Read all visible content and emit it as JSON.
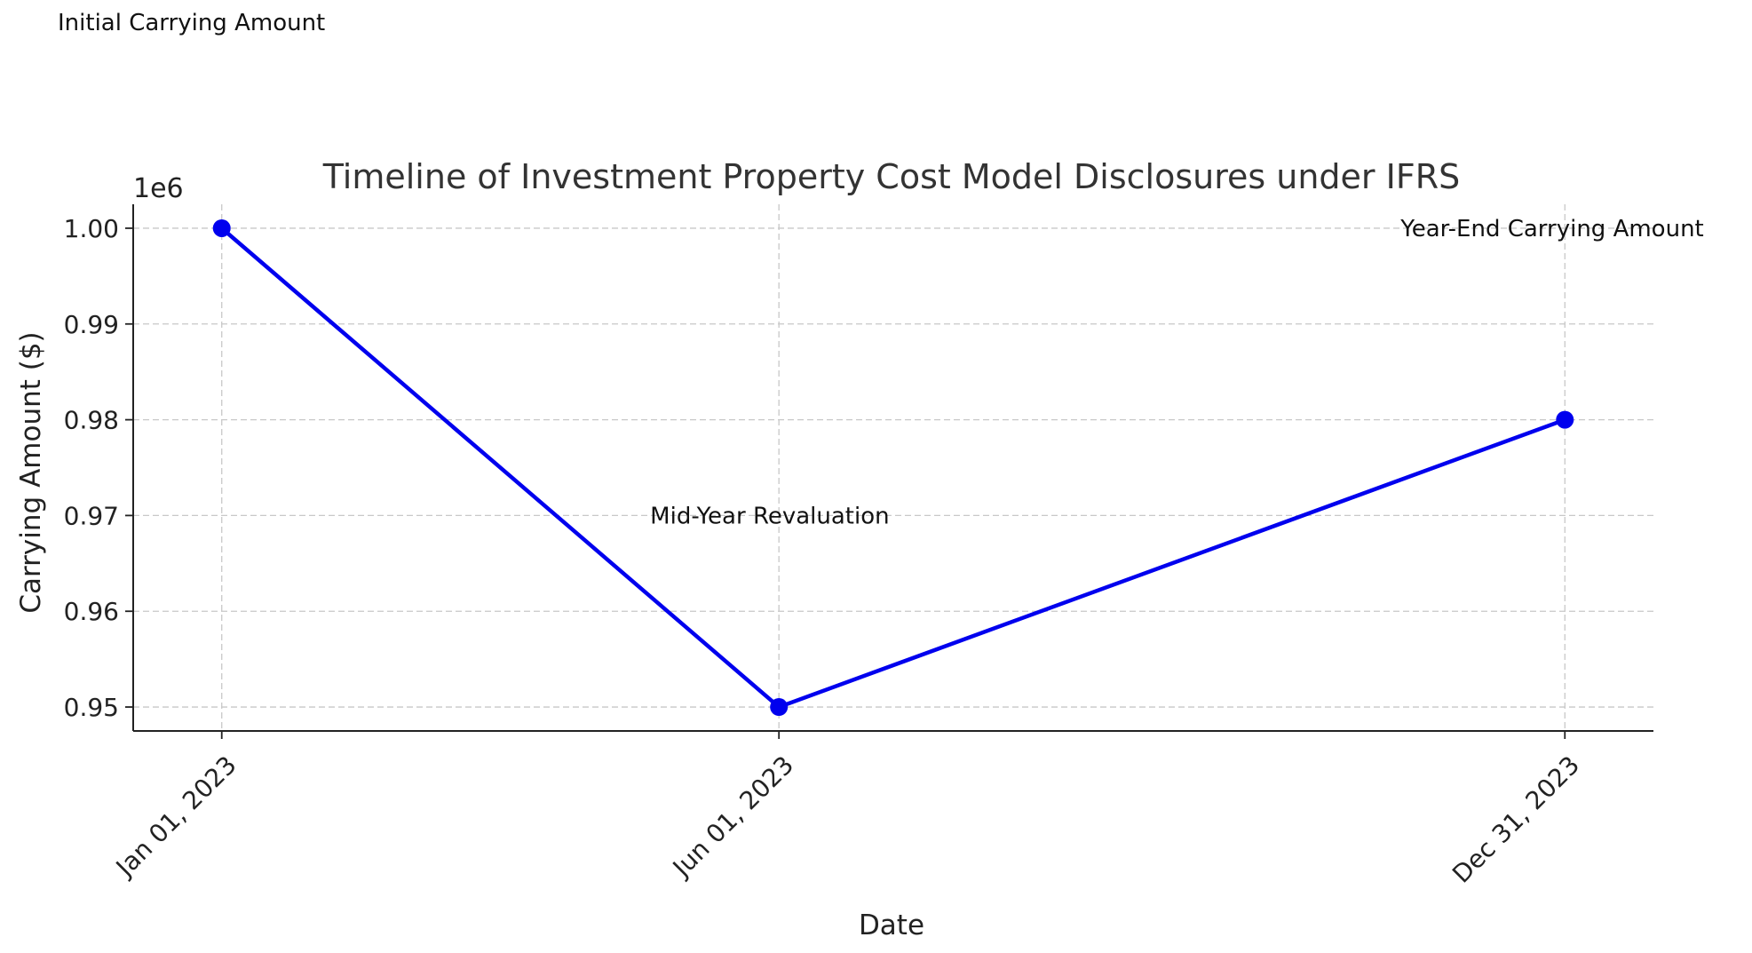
{
  "chart_data": {
    "type": "line",
    "title": "Timeline of Investment Property Cost Model Disclosures under IFRS",
    "xlabel": "Date",
    "ylabel": "Carrying Amount ($)",
    "y_offset_label": "1e6",
    "x": [
      "2023-01-01",
      "2023-06-01",
      "2023-12-31"
    ],
    "x_tick_labels": [
      "Jan 01, 2023",
      "Jun 01, 2023",
      "Dec 31, 2023"
    ],
    "y_ticks": [
      0.95,
      0.96,
      0.97,
      0.98,
      0.99,
      1.0
    ],
    "y_tick_labels": [
      "0.95",
      "0.96",
      "0.97",
      "0.98",
      "0.99",
      "1.00"
    ],
    "ylim": [
      947500,
      1002500
    ],
    "xlim": [
      "2022-12-08",
      "2024-01-24"
    ],
    "grid": true,
    "series": [
      {
        "values": [
          1000000,
          950000,
          980000
        ],
        "color": "#0000ee",
        "marker": "circle"
      }
    ],
    "annotations": [
      {
        "text": "Initial Carrying Amount",
        "x": "2023-01-01",
        "y": 1030000
      },
      {
        "text": "Mid-Year Revaluation",
        "x": "2023-06-01",
        "y": 970000
      },
      {
        "text": "Year-End Carrying Amount",
        "x": "2023-12-31",
        "y": 1000000
      }
    ]
  }
}
